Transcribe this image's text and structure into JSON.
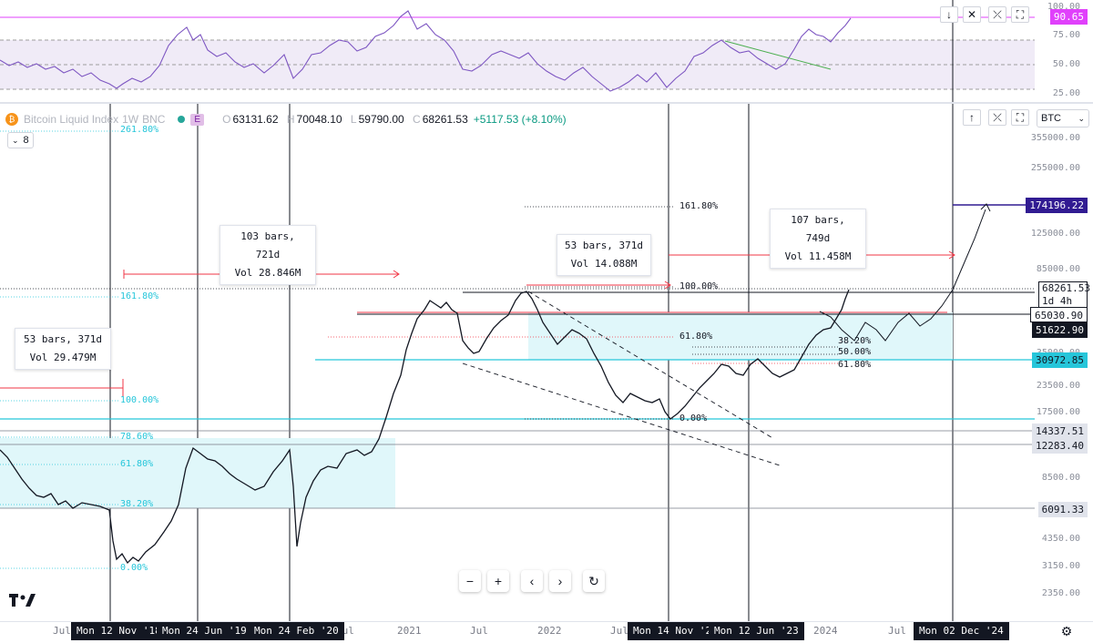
{
  "symbol": {
    "name": "Bitcoin Liquid Index",
    "interval": "1W",
    "exchange": "BNC",
    "badge": "E",
    "collapse_count": "8"
  },
  "ohlc": {
    "o_label": "O",
    "o": "63131.62",
    "h_label": "H",
    "h": "70048.10",
    "l_label": "L",
    "l": "59790.00",
    "c_label": "C",
    "c": "68261.53",
    "change": "+5117.53 (+8.10%)"
  },
  "rsi": {
    "current_value": "90.65",
    "levels": [
      "100.00",
      "75.00",
      "50.00",
      "25.00"
    ],
    "tag_color": "#e040fb"
  },
  "price_scale": {
    "currency": "BTC",
    "labels": [
      "355000.00",
      "255000.00",
      "125000.00",
      "85000.00",
      "35000.00",
      "23500.00",
      "17500.00",
      "8500.00",
      "4350.00",
      "3150.00",
      "2350.00"
    ],
    "tags": [
      {
        "value": "174196.22",
        "style": "target"
      },
      {
        "value": "68261.53",
        "style": "current",
        "sub1": "1d 4h"
      },
      {
        "value": "65030.90",
        "style": "dark"
      },
      {
        "value": "51622.90",
        "style": "dark"
      },
      {
        "value": "30972.85",
        "style": "cyan"
      },
      {
        "value": "14337.51",
        "style": "grey"
      },
      {
        "value": "12283.40",
        "style": "grey"
      },
      {
        "value": "6091.33",
        "style": "grey"
      }
    ]
  },
  "time_axis": {
    "labels": [
      "Jul",
      "2021",
      "Jul",
      "2022",
      "Jul",
      "2024",
      "Jul"
    ],
    "highlighted": [
      "Mon 12 Nov '18",
      "Mon 24 Jun '19",
      "Mon 24 Feb '20",
      "Mon 14 Nov '22",
      "Mon 12 Jun '23",
      "Mon 02 Dec '24"
    ]
  },
  "callouts": [
    {
      "line1": "53 bars, 371d",
      "line2": "Vol 29.479M"
    },
    {
      "line1": "103 bars, 721d",
      "line2": "Vol 28.846M"
    },
    {
      "line1": "53 bars, 371d",
      "line2": "Vol 14.088M"
    },
    {
      "line1": "107 bars, 749d",
      "line2": "Vol 11.458M"
    }
  ],
  "fib_left": [
    "261.80%",
    "161.80%",
    "100.00%",
    "78.60%",
    "61.80%",
    "38.20%",
    "0.00%"
  ],
  "fib_right": [
    "161.80%",
    "100.00%",
    "61.80%",
    "38.20%",
    "50.00%",
    "61.80%",
    "0.00%"
  ],
  "colors": {
    "cyan": "#26c6da",
    "red": "#f23645",
    "rsi_line": "#7e57c2",
    "navy": "#311b92",
    "accent_fill": "#e0f7fa"
  },
  "icons": {
    "brand": "tradingview-logo-icon",
    "settings": "settings-gear-icon"
  }
}
